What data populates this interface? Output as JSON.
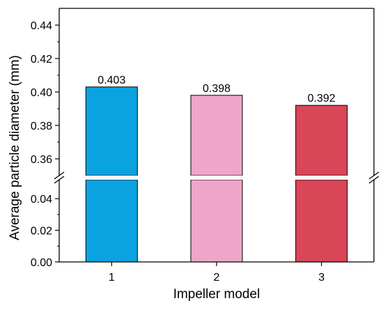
{
  "chart_data": {
    "type": "bar",
    "xlabel": "Impeller model",
    "ylabel": "Average particle diameter (mm)",
    "categories": [
      "1",
      "2",
      "3"
    ],
    "values": [
      0.403,
      0.398,
      0.392
    ],
    "data_labels": [
      "0.403",
      "0.398",
      "0.392"
    ],
    "bar_colors": [
      "#0aa3e0",
      "#eda6c9",
      "#d94658"
    ],
    "axis_break": true,
    "y_segments": [
      {
        "range": [
          0.0,
          0.052
        ],
        "ticks": [
          0.0,
          0.02,
          0.04
        ],
        "tick_labels": [
          "0.00",
          "0.02",
          "0.04"
        ]
      },
      {
        "range": [
          0.35,
          0.45
        ],
        "ticks": [
          0.36,
          0.38,
          0.4,
          0.42,
          0.44
        ],
        "tick_labels": [
          "0.36",
          "0.38",
          "0.40",
          "0.42",
          "0.44"
        ]
      }
    ],
    "grid": false,
    "legend": "none"
  }
}
